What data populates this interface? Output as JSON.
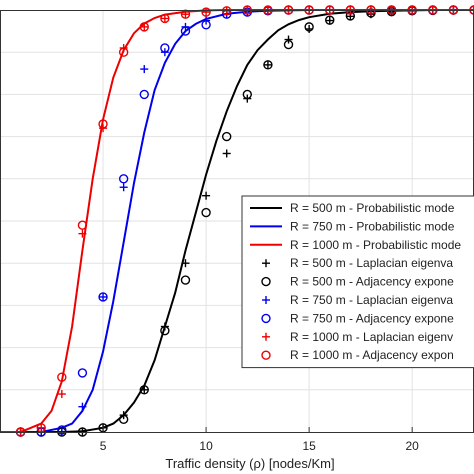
{
  "chart_data": {
    "type": "line",
    "xlabel": "Traffic density (ρ) [nodes/Km]",
    "ylabel": "",
    "title": "",
    "xlim": [
      0,
      23
    ],
    "ylim": [
      0,
      1
    ],
    "x_ticks": [
      5,
      10,
      15,
      20
    ],
    "grid": true,
    "legend_position": "right",
    "colors": {
      "r500": "#000000",
      "r750": "#0000ee",
      "r1000": "#ee0000"
    },
    "series": [
      {
        "name": "R = 500 m - Probabilistic mode",
        "kind": "line",
        "color": "#000000",
        "x": [
          0,
          1,
          2,
          3,
          4,
          5,
          5.5,
          6,
          6.5,
          7,
          7.5,
          8,
          8.5,
          9,
          9.5,
          10,
          10.5,
          11,
          11.5,
          12,
          12.5,
          13,
          13.5,
          14,
          14.5,
          15,
          16,
          17,
          18,
          19,
          20,
          21,
          22,
          23
        ],
        "y": [
          0,
          0,
          0,
          0,
          0.002,
          0.01,
          0.02,
          0.04,
          0.07,
          0.11,
          0.17,
          0.25,
          0.33,
          0.43,
          0.52,
          0.61,
          0.69,
          0.76,
          0.82,
          0.87,
          0.905,
          0.93,
          0.952,
          0.966,
          0.976,
          0.983,
          0.991,
          0.995,
          0.997,
          0.998,
          0.999,
          1,
          1,
          1
        ]
      },
      {
        "name": "R = 750 m - Probabilistic mode",
        "kind": "line",
        "color": "#0000ee",
        "x": [
          0,
          1,
          2,
          3,
          3.5,
          4,
          4.5,
          5,
          5.5,
          6,
          6.5,
          7,
          7.5,
          8,
          8.5,
          9,
          9.5,
          10,
          11,
          12,
          13,
          14,
          15,
          16,
          18,
          20,
          23
        ],
        "y": [
          0,
          0,
          0,
          0.01,
          0.02,
          0.05,
          0.1,
          0.19,
          0.31,
          0.45,
          0.59,
          0.71,
          0.81,
          0.875,
          0.92,
          0.95,
          0.967,
          0.979,
          0.991,
          0.996,
          0.998,
          0.999,
          1,
          1,
          1,
          1,
          1
        ]
      },
      {
        "name": "R = 1000 m - Probabilistic mode",
        "kind": "line",
        "color": "#ee0000",
        "x": [
          0,
          1,
          1.5,
          2,
          2.5,
          3,
          3.5,
          4,
          4.5,
          5,
          5.5,
          6,
          6.5,
          7,
          7.5,
          8,
          9,
          10,
          11,
          12,
          14,
          16,
          18,
          20,
          23
        ],
        "y": [
          0,
          0,
          0.01,
          0.02,
          0.05,
          0.12,
          0.25,
          0.43,
          0.6,
          0.74,
          0.84,
          0.905,
          0.945,
          0.968,
          0.981,
          0.989,
          0.996,
          0.999,
          1,
          1,
          1,
          1,
          1,
          1,
          1
        ]
      },
      {
        "name": "R = 500 m - Laplacian eigenva",
        "kind": "plus",
        "color": "#000000",
        "x": [
          1,
          2,
          3,
          4,
          5,
          6,
          7,
          8,
          9,
          10,
          11,
          12,
          13,
          14,
          15,
          16,
          17,
          18,
          19,
          20,
          21,
          22,
          23
        ],
        "y": [
          0,
          0,
          0,
          0,
          0.01,
          0.04,
          0.1,
          0.25,
          0.4,
          0.56,
          0.66,
          0.79,
          0.87,
          0.93,
          0.955,
          0.975,
          0.985,
          0.99,
          0.995,
          0.998,
          0.999,
          1,
          1
        ]
      },
      {
        "name": "R = 500 m - Adjacency expone",
        "kind": "circle",
        "color": "#000000",
        "x": [
          1,
          2,
          3,
          4,
          5,
          6,
          7,
          8,
          9,
          10,
          11,
          12,
          13,
          14,
          15,
          16,
          17,
          18,
          19,
          20,
          21,
          22,
          23
        ],
        "y": [
          0,
          0,
          0,
          0,
          0.01,
          0.03,
          0.1,
          0.24,
          0.36,
          0.52,
          0.7,
          0.8,
          0.87,
          0.918,
          0.96,
          0.976,
          0.986,
          0.993,
          0.996,
          0.998,
          0.999,
          1,
          1
        ]
      },
      {
        "name": "R = 750 m - Laplacian eigenva",
        "kind": "plus",
        "color": "#0000ee",
        "x": [
          1,
          2,
          3,
          4,
          5,
          6,
          7,
          8,
          9,
          10,
          11,
          12,
          13,
          14,
          15,
          16,
          17,
          18,
          19,
          20,
          21,
          22,
          23
        ],
        "y": [
          0,
          0,
          0,
          0.06,
          0.32,
          0.58,
          0.86,
          0.9,
          0.96,
          0.975,
          0.99,
          0.995,
          0.998,
          1,
          1,
          1,
          1,
          1,
          1,
          1,
          1,
          1,
          1
        ]
      },
      {
        "name": "R = 750 m - Adjacency expone",
        "kind": "circle",
        "color": "#0000ee",
        "x": [
          1,
          2,
          3,
          4,
          5,
          6,
          7,
          8,
          9,
          10,
          11,
          12,
          13,
          14,
          15,
          16,
          17,
          18,
          19,
          20,
          21,
          22,
          23
        ],
        "y": [
          0,
          0,
          0.005,
          0.14,
          0.32,
          0.6,
          0.8,
          0.91,
          0.95,
          0.965,
          0.99,
          0.995,
          0.998,
          1,
          1,
          1,
          1,
          1,
          1,
          1,
          1,
          1,
          1
        ]
      },
      {
        "name": "R = 1000 m - Laplacian eigenv",
        "kind": "plus",
        "color": "#ee0000",
        "x": [
          1,
          2,
          3,
          4,
          5,
          6,
          7,
          8,
          9,
          10,
          11,
          12,
          13,
          14,
          15,
          16,
          17,
          18,
          19,
          20,
          21,
          22,
          23
        ],
        "y": [
          0,
          0.01,
          0.09,
          0.47,
          0.72,
          0.91,
          0.96,
          0.98,
          0.99,
          0.995,
          0.998,
          1,
          1,
          1,
          1,
          1,
          1,
          1,
          1,
          1,
          1,
          1,
          1
        ]
      },
      {
        "name": "R = 1000 m - Adjacency expon",
        "kind": "circle",
        "color": "#ee0000",
        "x": [
          1,
          2,
          3,
          4,
          5,
          6,
          7,
          8,
          9,
          10,
          11,
          12,
          13,
          14,
          15,
          16,
          17,
          18,
          19,
          20,
          21,
          22,
          23
        ],
        "y": [
          0,
          0.01,
          0.13,
          0.49,
          0.73,
          0.9,
          0.96,
          0.98,
          0.99,
          0.995,
          0.998,
          1,
          1,
          1,
          1,
          1,
          1,
          1,
          1,
          1,
          1,
          1,
          1
        ]
      }
    ]
  }
}
